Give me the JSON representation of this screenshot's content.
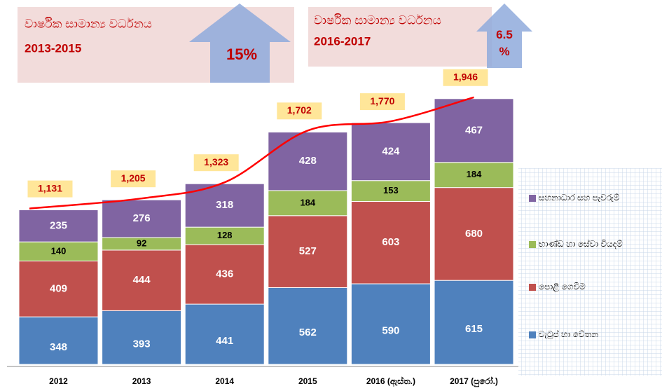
{
  "chart_data": {
    "type": "stacked_bar",
    "annotations": [
      {
        "title": "වාර්ෂික සාමාන්‍ය වර්ධනය",
        "period": "2013-2015",
        "growth": "15%"
      },
      {
        "title": "වාර්ෂික සාමාන්‍ය වර්ධනය",
        "period": "2016-2017",
        "growth": "6.5 %"
      }
    ],
    "categories": [
      "2012",
      "2013",
      "2014",
      "2015",
      "2016 (ඇස්ත.)",
      "2017 (පුරෝ.)"
    ],
    "series": [
      {
        "name": "වැටුප් හා වේතන",
        "color": "#4f81bd",
        "values": [
          348,
          393,
          441,
          562,
          590,
          615
        ]
      },
      {
        "name": "පොළී ගෙවීම",
        "color": "#c0504d",
        "values": [
          409,
          444,
          436,
          527,
          603,
          680
        ]
      },
      {
        "name": "භාණ්ඩ හා සේවා වියදම්",
        "color": "#9bbb59",
        "values": [
          140,
          92,
          128,
          184,
          153,
          184
        ]
      },
      {
        "name": "සහනාධාර සහ පැවරුම්",
        "color": "#8064a2",
        "values": [
          235,
          276,
          318,
          428,
          424,
          467
        ]
      }
    ],
    "totals": {
      "values": [
        1131,
        1205,
        1323,
        1702,
        1770,
        1946
      ],
      "value_labels": [
        "1,131",
        "1,205",
        "1,323",
        "1,702",
        "1,770",
        "1,946"
      ],
      "color": "#ff0000"
    }
  }
}
